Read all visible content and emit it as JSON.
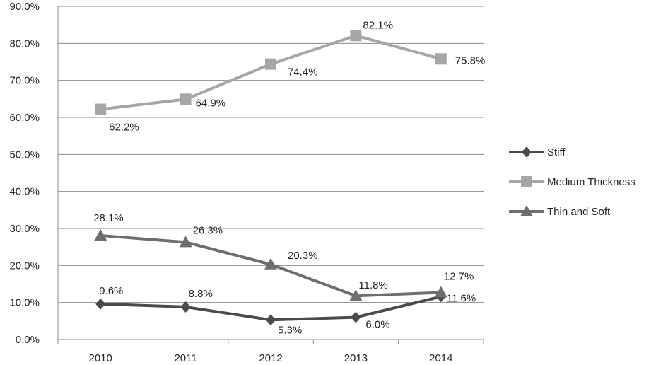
{
  "chart_data": {
    "type": "line",
    "title": "",
    "xlabel": "",
    "ylabel": "",
    "categories": [
      "2010",
      "2011",
      "2012",
      "2013",
      "2014"
    ],
    "ylim": [
      0,
      90
    ],
    "yticks": [
      0,
      10,
      20,
      30,
      40,
      50,
      60,
      70,
      80,
      90
    ],
    "ytick_labels": [
      "0.0%",
      "10.0%",
      "20.0%",
      "30.0%",
      "40.0%",
      "50.0%",
      "60.0%",
      "70.0%",
      "80.0%",
      "90.0%"
    ],
    "grid": true,
    "legend_position": "right",
    "series": [
      {
        "name": "Stiff",
        "marker": "diamond",
        "color": "#4a4a4a",
        "values": [
          9.6,
          8.8,
          5.3,
          6.0,
          11.6
        ],
        "labels": [
          "9.6%",
          "8.8%",
          "5.3%",
          "6.0%",
          "11.6%"
        ]
      },
      {
        "name": "Medium Thickness",
        "marker": "square",
        "color": "#a6a6a6",
        "values": [
          62.2,
          64.9,
          74.4,
          82.1,
          75.8
        ],
        "labels": [
          "62.2%",
          "64.9%",
          "74.4%",
          "82.1%",
          "75.8%"
        ]
      },
      {
        "name": "Thin and Soft",
        "marker": "triangle",
        "color": "#6e6e6e",
        "values": [
          28.1,
          26.3,
          20.3,
          11.8,
          12.7
        ],
        "labels": [
          "28.1%",
          "26.3%",
          "20.3%",
          "11.8%",
          "12.7%"
        ]
      }
    ]
  }
}
